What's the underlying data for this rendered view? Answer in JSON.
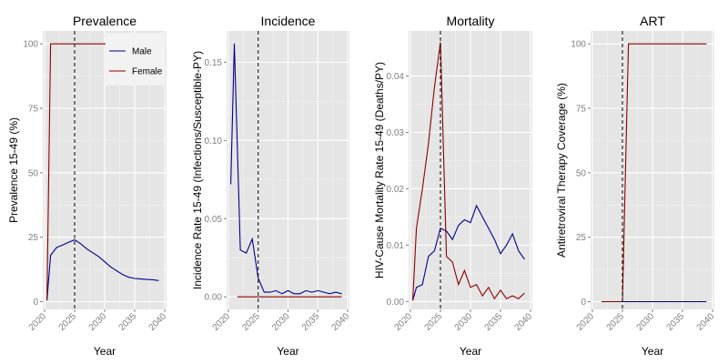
{
  "chart_data": [
    {
      "type": "line",
      "title": "Prevalence",
      "xlabel": "Year",
      "ylabel": "Prevalence 15-49 (%)",
      "xlim": [
        2019.7,
        2040.3
      ],
      "ylim": [
        -3,
        105
      ],
      "x_ticks": [
        2020,
        2025,
        2030,
        2035,
        2040
      ],
      "y_ticks": [
        0,
        25,
        50,
        75,
        100
      ],
      "y_tick_labels": [
        "0",
        "25",
        "50",
        "75",
        "100"
      ],
      "vline_x": 2025,
      "legend": {
        "position": "top-right",
        "entries": [
          {
            "name": "Male",
            "color": "#00008b"
          },
          {
            "name": "Female",
            "color": "#8b0000"
          }
        ]
      },
      "series": [
        {
          "name": "Male",
          "color": "#00008b",
          "x": [
            2020.4,
            2021,
            2022,
            2023,
            2024,
            2025,
            2026,
            2027,
            2028,
            2029,
            2030,
            2031,
            2032,
            2033,
            2034,
            2035,
            2036,
            2037,
            2038,
            2039
          ],
          "values": [
            0.5,
            18,
            21,
            22,
            23,
            24,
            22.5,
            20.5,
            19,
            17.5,
            15.5,
            13.5,
            12,
            10.5,
            9.5,
            9,
            8.8,
            8.6,
            8.5,
            8.2
          ]
        },
        {
          "name": "Female",
          "color": "#8b0000",
          "x": [
            2020.4,
            2021,
            2022,
            2023,
            2024,
            2025,
            2026,
            2027,
            2028,
            2029,
            2030,
            2031,
            2032,
            2033,
            2034,
            2035,
            2036,
            2037,
            2038,
            2039
          ],
          "values": [
            0.5,
            100,
            100,
            100,
            100,
            100,
            100,
            100,
            100,
            100,
            100,
            100,
            100,
            100,
            100,
            100,
            100,
            100,
            100,
            100
          ]
        }
      ]
    },
    {
      "type": "line",
      "title": "Incidence",
      "xlabel": "Year",
      "ylabel": "Incidence Rate 15-49 (Infections/Susceptible-PY)",
      "xlim": [
        2019.7,
        2040.3
      ],
      "ylim": [
        -0.008,
        0.17
      ],
      "x_ticks": [
        2020,
        2025,
        2030,
        2035,
        2040
      ],
      "y_ticks": [
        0,
        0.05,
        0.1,
        0.15
      ],
      "y_tick_labels": [
        "0.00",
        "0.05",
        "0.10",
        "0.15"
      ],
      "vline_x": 2025,
      "series": [
        {
          "name": "Male",
          "color": "#00008b",
          "x": [
            2020.4,
            2021,
            2022,
            2023,
            2024,
            2025,
            2026,
            2027,
            2028,
            2029,
            2030,
            2031,
            2032,
            2033,
            2034,
            2035,
            2036,
            2037,
            2038,
            2039
          ],
          "values": [
            0.072,
            0.162,
            0.03,
            0.028,
            0.037,
            0.012,
            0.003,
            0.003,
            0.004,
            0.002,
            0.004,
            0.002,
            0.002,
            0.004,
            0.003,
            0.004,
            0.003,
            0.002,
            0.003,
            0.002
          ]
        },
        {
          "name": "Female",
          "color": "#8b0000",
          "x": [
            2021.5,
            2039
          ],
          "values": [
            0,
            0
          ]
        }
      ]
    },
    {
      "type": "line",
      "title": "Mortality",
      "xlabel": "Year",
      "ylabel": "HIV-Cause Mortality Rate 15-49 (Deaths/PY)",
      "xlim": [
        2019.7,
        2040.3
      ],
      "ylim": [
        -0.0014,
        0.048
      ],
      "x_ticks": [
        2020,
        2025,
        2030,
        2035,
        2040
      ],
      "y_ticks": [
        0,
        0.01,
        0.02,
        0.03,
        0.04
      ],
      "y_tick_labels": [
        "0.00",
        "0.01",
        "0.02",
        "0.03",
        "0.04"
      ],
      "vline_x": 2025,
      "series": [
        {
          "name": "Male",
          "color": "#00008b",
          "x": [
            2020.4,
            2021,
            2022,
            2023,
            2024,
            2025,
            2026,
            2027,
            2028,
            2029,
            2030,
            2031,
            2032,
            2033,
            2034,
            2035,
            2036,
            2037,
            2038,
            2039
          ],
          "values": [
            0.0002,
            0.0025,
            0.003,
            0.008,
            0.009,
            0.013,
            0.0125,
            0.011,
            0.0135,
            0.0145,
            0.014,
            0.017,
            0.015,
            0.013,
            0.011,
            0.0085,
            0.01,
            0.012,
            0.009,
            0.0075
          ]
        },
        {
          "name": "Female",
          "color": "#8b0000",
          "x": [
            2020.4,
            2021,
            2022,
            2023,
            2024,
            2025,
            2026,
            2027,
            2028,
            2029,
            2030,
            2031,
            2032,
            2033,
            2034,
            2035,
            2036,
            2037,
            2038,
            2039
          ],
          "values": [
            0.0002,
            0.013,
            0.02,
            0.028,
            0.038,
            0.046,
            0.008,
            0.007,
            0.003,
            0.0055,
            0.0025,
            0.003,
            0.001,
            0.0025,
            0.0005,
            0.002,
            0.0005,
            0.001,
            0.0005,
            0.0015
          ]
        }
      ]
    },
    {
      "type": "line",
      "title": "ART",
      "xlabel": "Year",
      "ylabel": "Antiretroviral Therapy Coverage (%)",
      "xlim": [
        2019.7,
        2040.3
      ],
      "ylim": [
        -3,
        105
      ],
      "x_ticks": [
        2020,
        2025,
        2030,
        2035,
        2040
      ],
      "y_ticks": [
        0,
        25,
        50,
        75,
        100
      ],
      "y_tick_labels": [
        "0",
        "25",
        "50",
        "75",
        "100"
      ],
      "vline_x": 2025,
      "series": [
        {
          "name": "Male",
          "color": "#00008b",
          "x": [
            2024,
            2039
          ],
          "values": [
            0,
            0
          ]
        },
        {
          "name": "Female",
          "color": "#8b0000",
          "x": [
            2021.5,
            2024,
            2025,
            2026,
            2039
          ],
          "values": [
            0,
            0,
            0,
            100,
            100
          ]
        }
      ]
    }
  ]
}
